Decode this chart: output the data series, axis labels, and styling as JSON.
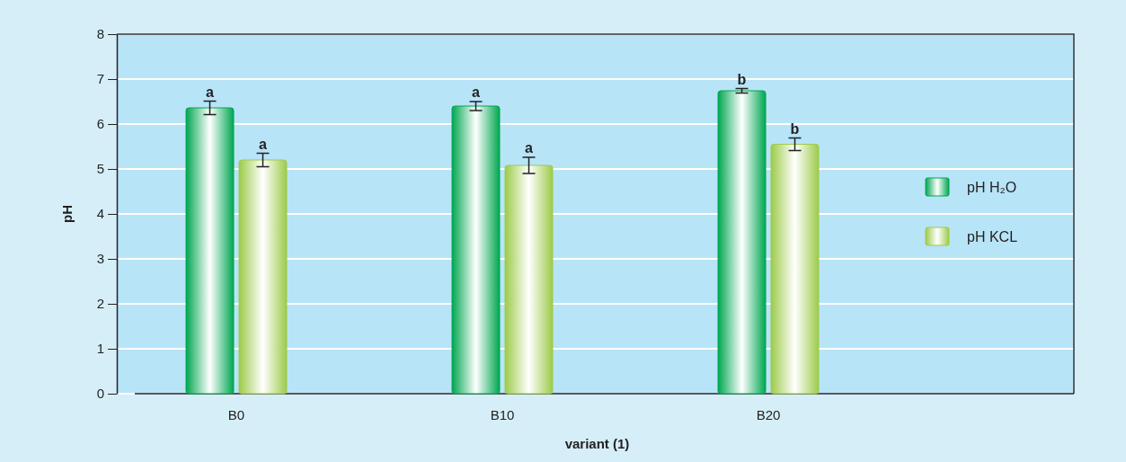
{
  "chart_data": {
    "type": "bar",
    "xlabel": "variant (1)",
    "ylabel": "pH",
    "categories": [
      "B0",
      "B10",
      "B20"
    ],
    "series": [
      {
        "name": "pH H₂O",
        "color": "#00a650",
        "values": [
          6.36,
          6.4,
          6.74
        ],
        "errors": [
          0.15,
          0.1,
          0.05
        ],
        "value_labels": [
          "a",
          "a",
          "b"
        ]
      },
      {
        "name": "pH KCL",
        "color": "#9dcb4a",
        "values": [
          5.2,
          5.08,
          5.55
        ],
        "errors": [
          0.15,
          0.18,
          0.14
        ],
        "value_labels": [
          "a",
          "a",
          "b"
        ]
      }
    ],
    "ylim": [
      0,
      8
    ],
    "yticks": [
      0,
      1,
      2,
      3,
      4,
      5,
      6,
      7,
      8
    ],
    "grid": "y",
    "legend": "right"
  }
}
